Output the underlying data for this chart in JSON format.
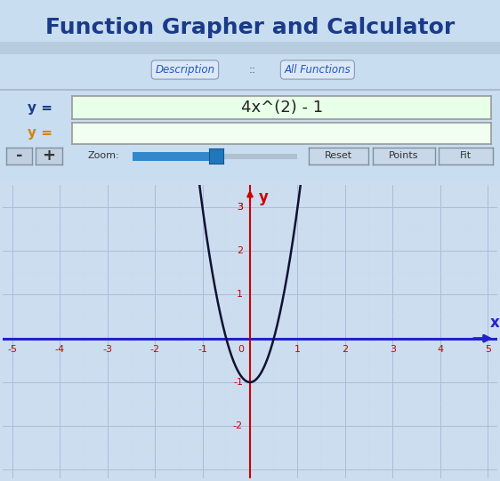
{
  "title": "Function Grapher and Calculator",
  "title_color": "#1a3a8a",
  "title_fontsize": 18,
  "bg_top_color": "#ccddef",
  "bg_graph_color": "#ddeeff",
  "grid_color_major": "#aabbdd",
  "grid_color_minor": "#c8d8ee",
  "axis_color_x": "#2222cc",
  "axis_color_y": "#cc0000",
  "curve_color": "#111133",
  "formula": "4x^(2) - 1",
  "formula_box_bg": "#e8ffe8",
  "formula_box_border": "#999999",
  "y1_label_color": "#1a3a8a",
  "y2_label_color": "#cc8800",
  "label_desc": "Description",
  "label_all": "All Functions",
  "link_color": "#2255cc",
  "zoom_label": "Zoom:",
  "xmin": -5.2,
  "xmax": 5.2,
  "ymin": -3.2,
  "ymax": 3.5,
  "xticks": [
    -5,
    -4,
    -3,
    -2,
    -1,
    0,
    1,
    2,
    3,
    4,
    5
  ],
  "yticks": [
    -2,
    -1,
    1,
    2,
    3
  ],
  "tick_color": "#cc0000",
  "tick_fontsize": 8,
  "panel_bg": "#c8ddf0"
}
